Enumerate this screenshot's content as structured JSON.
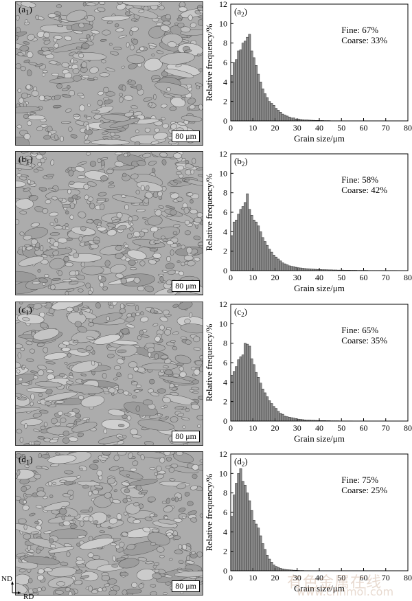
{
  "panels": [
    {
      "micro_label_main": "(a",
      "micro_label_sub": "1",
      "scale": "80 μm"
    },
    {
      "micro_label_main": "(b",
      "micro_label_sub": "1",
      "scale": "80 μm"
    },
    {
      "micro_label_main": "(c",
      "micro_label_sub": "1",
      "scale": "80 μm"
    },
    {
      "micro_label_main": "(d",
      "micro_label_sub": "1",
      "scale": "80 μm"
    }
  ],
  "axes_indicator": {
    "nd": "ND",
    "rd": "RD"
  },
  "watermark": {
    "line1": "有色金属在线",
    "line2": "www.cnnmol.com"
  },
  "chart_data": [
    {
      "type": "bar",
      "panel_label": "(a",
      "panel_sub": "2",
      "xlabel": "Grain size/μm",
      "ylabel": "Relative frequency/%",
      "xlim": [
        0,
        80
      ],
      "ylim": [
        0,
        12
      ],
      "xticks": [
        0,
        10,
        20,
        30,
        40,
        50,
        60,
        70,
        80
      ],
      "yticks": [
        0,
        2,
        4,
        6,
        8,
        10,
        12
      ],
      "annotation": [
        "Fine: 67%",
        "Coarse: 33%"
      ],
      "bin_width": 1,
      "values": [
        4.7,
        6.0,
        6.3,
        7.2,
        7.3,
        8.0,
        8.2,
        8.6,
        8.9,
        7.2,
        6.5,
        5.7,
        4.8,
        4.0,
        3.3,
        2.8,
        2.4,
        2.0,
        1.8,
        1.6,
        1.3,
        1.1,
        0.9,
        0.7,
        0.6,
        0.5,
        0.4,
        0.3,
        0.3,
        0.2,
        0.2,
        0.15,
        0.12,
        0.1,
        0.1,
        0.08,
        0.07,
        0.06,
        0.05,
        0.05,
        0.04,
        0.04,
        0.03,
        0.03,
        0.03,
        0.02,
        0.02,
        0.02,
        0.02,
        0.02,
        0.01,
        0.01,
        0.01,
        0.01,
        0.01,
        0.01,
        0.01,
        0.01,
        0.01,
        0.01,
        0.01,
        0.01,
        0,
        0,
        0,
        0,
        0,
        0,
        0,
        0,
        0,
        0,
        0,
        0,
        0,
        0,
        0,
        0,
        0,
        0
      ]
    },
    {
      "type": "bar",
      "panel_label": "(b",
      "panel_sub": "2",
      "xlabel": "Grain size/μm",
      "ylabel": "Relative frequency/%",
      "xlim": [
        0,
        80
      ],
      "ylim": [
        0,
        12
      ],
      "xticks": [
        0,
        10,
        20,
        30,
        40,
        50,
        60,
        70,
        80
      ],
      "yticks": [
        0,
        2,
        4,
        6,
        8,
        10,
        12
      ],
      "annotation": [
        "Fine: 58%",
        "Coarse: 42%"
      ],
      "bin_width": 1,
      "values": [
        3.6,
        5.0,
        5.2,
        5.8,
        6.3,
        6.6,
        7.0,
        7.9,
        6.3,
        5.7,
        5.2,
        5.0,
        4.6,
        4.0,
        3.4,
        3.0,
        2.6,
        2.2,
        1.9,
        1.6,
        1.4,
        1.2,
        1.0,
        0.8,
        0.7,
        0.6,
        0.5,
        0.45,
        0.4,
        0.35,
        0.3,
        0.28,
        0.25,
        0.22,
        0.2,
        0.18,
        0.16,
        0.15,
        0.14,
        0.12,
        0.12,
        0.1,
        0.1,
        0.09,
        0.08,
        0.08,
        0.07,
        0.07,
        0.06,
        0.06,
        0.06,
        0.05,
        0.05,
        0.05,
        0.04,
        0.04,
        0.04,
        0.03,
        0.03,
        0.03,
        0.03,
        0.03,
        0.02,
        0.02,
        0.02,
        0.02,
        0.02,
        0.02,
        0.02,
        0.02,
        0.02,
        0.02,
        0.02,
        0.02,
        0.02,
        0.01,
        0.01,
        0.01,
        0.01,
        0.01
      ]
    },
    {
      "type": "bar",
      "panel_label": "(c",
      "panel_sub": "2",
      "xlabel": "Grain size/μm",
      "ylabel": "Relative frequency/%",
      "xlim": [
        0,
        80
      ],
      "ylim": [
        0,
        12
      ],
      "xticks": [
        0,
        10,
        20,
        30,
        40,
        50,
        60,
        70,
        80
      ],
      "yticks": [
        0,
        2,
        4,
        6,
        8,
        10,
        12
      ],
      "annotation": [
        "Fine: 65%",
        "Coarse: 35%"
      ],
      "bin_width": 1,
      "values": [
        4.7,
        5.1,
        5.6,
        6.3,
        6.6,
        6.8,
        8.0,
        7.9,
        7.7,
        6.4,
        5.8,
        5.0,
        4.5,
        3.9,
        3.3,
        2.9,
        2.5,
        2.1,
        1.8,
        1.5,
        1.3,
        1.0,
        0.8,
        0.7,
        0.5,
        0.45,
        0.4,
        0.35,
        0.3,
        0.25,
        0.2,
        0.18,
        0.15,
        0.12,
        0.1,
        0.1,
        0.08,
        0.08,
        0.07,
        0.06,
        0.05,
        0.05,
        0.05,
        0.04,
        0.04,
        0.03,
        0.03,
        0.03,
        0.03,
        0.02,
        0.02,
        0.02,
        0.02,
        0.02,
        0.02,
        0.01,
        0.01,
        0.01,
        0.01,
        0.01,
        0.01,
        0.01,
        0.01,
        0.01,
        0.01,
        0.01,
        0.01,
        0.01,
        0.01,
        0.01,
        0.01,
        0.01,
        0.01,
        0.01,
        0.01,
        0.01,
        0,
        0,
        0,
        0
      ]
    },
    {
      "type": "bar",
      "panel_label": "(d",
      "panel_sub": "2",
      "xlabel": "Grain size/μm",
      "ylabel": "Relative frequency/%",
      "xlim": [
        0,
        80
      ],
      "ylim": [
        0,
        12
      ],
      "xticks": [
        0,
        10,
        20,
        30,
        40,
        50,
        60,
        70,
        80
      ],
      "yticks": [
        0,
        2,
        4,
        6,
        8,
        10,
        12
      ],
      "annotation": [
        "Fine: 75%",
        "Coarse: 25%"
      ],
      "bin_width": 1,
      "values": [
        5.6,
        7.8,
        9.0,
        10.0,
        10.5,
        9.2,
        8.8,
        8.0,
        7.2,
        6.2,
        5.2,
        4.8,
        4.4,
        3.6,
        2.8,
        2.2,
        1.6,
        1.2,
        0.9,
        0.6,
        0.45,
        0.35,
        0.25,
        0.2,
        0.15,
        0.12,
        0.1,
        0.08,
        0.06,
        0.05,
        0.04,
        0.03,
        0.03,
        0.02,
        0.02,
        0.02,
        0.01,
        0.01,
        0.01,
        0.01,
        0,
        0,
        0,
        0,
        0,
        0,
        0,
        0,
        0,
        0,
        0,
        0,
        0,
        0,
        0,
        0,
        0,
        0,
        0,
        0,
        0,
        0,
        0,
        0,
        0,
        0,
        0,
        0,
        0,
        0,
        0,
        0,
        0,
        0,
        0,
        0,
        0,
        0,
        0,
        0
      ]
    }
  ]
}
